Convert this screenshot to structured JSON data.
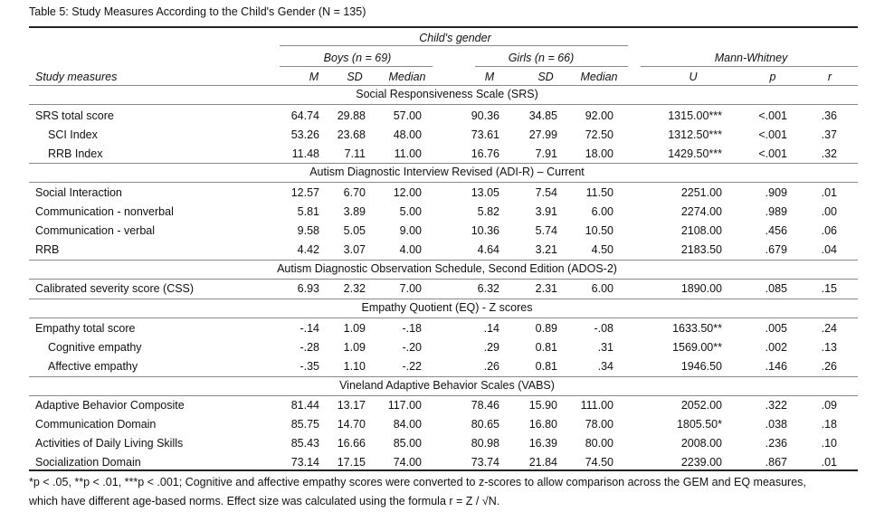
{
  "caption": "Table 5: Study Measures According to the Child's Gender (N = 135)",
  "header": {
    "group": "Child's gender",
    "boys": "Boys (n = 69)",
    "girls": "Girls (n = 66)",
    "mw": "Mann-Whitney",
    "measures": "Study measures",
    "cols": [
      "M",
      "SD",
      "Median",
      "M",
      "SD",
      "Median",
      "U",
      "p",
      "r"
    ]
  },
  "sections": [
    {
      "title": "Social Responsiveness Scale (SRS)",
      "rows": [
        {
          "label": "SRS total score",
          "indent": 0,
          "vals": [
            "64.74",
            "29.88",
            "57.00",
            "90.36",
            "34.85",
            "92.00",
            "1315.00***",
            "<.001",
            ".36"
          ]
        },
        {
          "label": "SCI Index",
          "indent": 1,
          "vals": [
            "53.26",
            "23.68",
            "48.00",
            "73.61",
            "27.99",
            "72.50",
            "1312.50***",
            "<.001",
            ".37"
          ]
        },
        {
          "label": "RRB Index",
          "indent": 1,
          "vals": [
            "11.48",
            "7.11",
            "11.00",
            "16.76",
            "7.91",
            "18.00",
            "1429.50***",
            "<.001",
            ".32"
          ]
        }
      ]
    },
    {
      "title": "Autism Diagnostic Interview Revised (ADI-R) – Current",
      "rows": [
        {
          "label": "Social Interaction",
          "indent": 0,
          "vals": [
            "12.57",
            "6.70",
            "12.00",
            "13.05",
            "7.54",
            "11.50",
            "2251.00",
            ".909",
            ".01"
          ]
        },
        {
          "label": "Communication - nonverbal",
          "indent": 0,
          "vals": [
            "5.81",
            "3.89",
            "5.00",
            "5.82",
            "3.91",
            "6.00",
            "2274.00",
            ".989",
            ".00"
          ]
        },
        {
          "label": "Communication - verbal",
          "indent": 0,
          "vals": [
            "9.58",
            "5.05",
            "9.00",
            "10.36",
            "5.74",
            "10.50",
            "2108.00",
            ".456",
            ".06"
          ]
        },
        {
          "label": "RRB",
          "indent": 0,
          "vals": [
            "4.42",
            "3.07",
            "4.00",
            "4.64",
            "3.21",
            "4.50",
            "2183.50",
            ".679",
            ".04"
          ]
        }
      ]
    },
    {
      "title": "Autism Diagnostic Observation Schedule, Second Edition (ADOS-2)",
      "rows": [
        {
          "label": "Calibrated severity score (CSS)",
          "indent": 0,
          "vals": [
            "6.93",
            "2.32",
            "7.00",
            "6.32",
            "2.31",
            "6.00",
            "1890.00",
            ".085",
            ".15"
          ]
        }
      ]
    },
    {
      "title": "Empathy Quotient (EQ) - Z scores",
      "rows": [
        {
          "label": "Empathy total score",
          "indent": 0,
          "vals": [
            "-.14",
            "1.09",
            "-.18",
            ".14",
            "0.89",
            "-.08",
            "1633.50**",
            ".005",
            ".24"
          ]
        },
        {
          "label": "Cognitive empathy",
          "indent": 1,
          "vals": [
            "-.28",
            "1.09",
            "-.20",
            ".29",
            "0.81",
            ".31",
            "1569.00**",
            ".002",
            ".13"
          ]
        },
        {
          "label": "Affective empathy",
          "indent": 1,
          "vals": [
            "-.35",
            "1.10",
            "-.22",
            ".26",
            "0.81",
            ".34",
            "1946.50",
            ".146",
            ".26"
          ]
        }
      ]
    },
    {
      "title": "Vineland Adaptive Behavior Scales (VABS)",
      "rows": [
        {
          "label": "Adaptive Behavior Composite",
          "indent": 0,
          "vals": [
            "81.44",
            "13.17",
            "117.00",
            "78.46",
            "15.90",
            "111.00",
            "2052.00",
            ".322",
            ".09"
          ]
        },
        {
          "label": "Communication Domain",
          "indent": 0,
          "vals": [
            "85.75",
            "14.70",
            "84.00",
            "80.65",
            "16.80",
            "78.00",
            "1805.50*",
            ".038",
            ".18"
          ]
        },
        {
          "label": "Activities of Daily Living Skills",
          "indent": 0,
          "vals": [
            "85.43",
            "16.66",
            "85.00",
            "80.98",
            "16.39",
            "80.00",
            "2008.00",
            ".236",
            ".10"
          ]
        },
        {
          "label": "Socialization Domain",
          "indent": 0,
          "vals": [
            "73.14",
            "17.15",
            "74.00",
            "73.74",
            "21.84",
            "74.50",
            "2239.00",
            ".867",
            ".01"
          ]
        }
      ]
    }
  ],
  "note": {
    "line1": "*p < .05, **p < .01, ***p < .001; Cognitive and affective empathy scores were converted to z-scores to allow comparison across the GEM and EQ measures,",
    "line2": "which have different age-based norms. Effect size was calculated using the formula r = Z / √N."
  }
}
